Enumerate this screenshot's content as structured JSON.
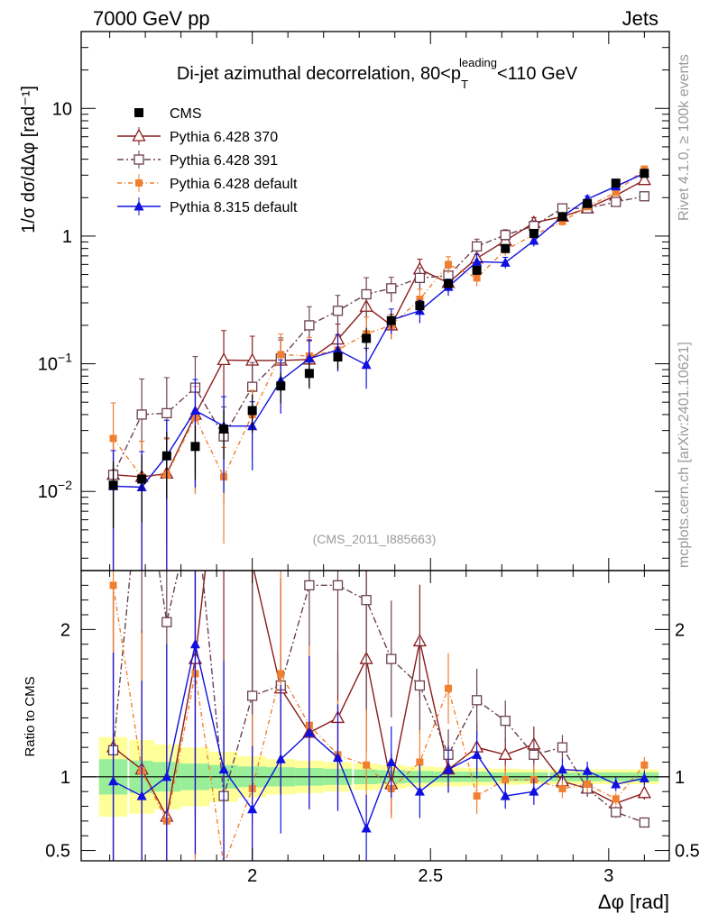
{
  "header": {
    "left": "7000 GeV pp",
    "right": "Jets"
  },
  "side_labels": {
    "rivet": "Rivet 4.1.0, ≥ 100k events",
    "mcplots": "mcplots.cern.ch [arXiv:2401.10621]"
  },
  "chart_data": {
    "type": "scatter",
    "title": "Di-jet azimuthal decorrelation, 80<p_T^leading<110 GeV",
    "title_main": "Di-jet azimuthal decorrelation, 80<p",
    "title_sup": "leading",
    "title_sub": "T",
    "title_end": "<110 GeV",
    "ylabel": "1/σ dσ/dΔφ [rad⁻¹]",
    "ratio_ylabel": "Ratio to CMS",
    "xlabel": "Δφ [rad]",
    "analysis_label": "(CMS_2011_I885663)",
    "xlim": [
      1.52,
      3.17
    ],
    "ylim": [
      0.0024,
      40
    ],
    "ratio_ylim": [
      0.43,
      2.4
    ],
    "yscale": "log",
    "x_ticks": [
      {
        "v": 2,
        "label": "2"
      },
      {
        "v": 2.5,
        "label": "2.5"
      },
      {
        "v": 3,
        "label": "3"
      }
    ],
    "y_ticks": [
      {
        "v": 0.01,
        "base": "10",
        "exp": "−2"
      },
      {
        "v": 0.1,
        "base": "10",
        "exp": "−1"
      },
      {
        "v": 1,
        "base": "1",
        "exp": ""
      },
      {
        "v": 10,
        "base": "10",
        "exp": ""
      }
    ],
    "ratio_ticks": [
      {
        "v": 0.5,
        "label": "0.5"
      },
      {
        "v": 1,
        "label": "1"
      },
      {
        "v": 2,
        "label": "2"
      }
    ],
    "x": [
      1.61,
      1.69,
      1.76,
      1.84,
      1.92,
      2.0,
      2.08,
      2.16,
      2.24,
      2.32,
      2.39,
      2.47,
      2.55,
      2.63,
      2.71,
      2.79,
      2.87,
      2.94,
      3.02,
      3.1
    ],
    "cms_values": [
      0.0112,
      0.0125,
      0.019,
      0.0225,
      0.0308,
      0.043,
      0.067,
      0.084,
      0.113,
      0.158,
      0.218,
      0.285,
      0.425,
      0.54,
      0.8,
      1.05,
      1.42,
      1.8,
      2.6,
      3.1
    ],
    "band_inner": [
      0.12,
      0.11,
      0.1,
      0.09,
      0.08,
      0.07,
      0.065,
      0.06,
      0.055,
      0.05,
      0.045,
      0.04,
      0.035,
      0.035,
      0.03,
      0.03,
      0.03,
      0.03,
      0.03,
      0.03
    ],
    "band_outer": [
      0.27,
      0.25,
      0.22,
      0.2,
      0.17,
      0.14,
      0.12,
      0.11,
      0.1,
      0.09,
      0.08,
      0.07,
      0.065,
      0.06,
      0.055,
      0.05,
      0.05,
      0.05,
      0.05,
      0.05
    ],
    "series": [
      {
        "name": "CMS",
        "color": "#000000",
        "marker": "square-filled",
        "dash": "",
        "values": [
          0.0112,
          0.0125,
          0.019,
          0.0225,
          0.0308,
          0.043,
          0.067,
          0.084,
          0.113,
          0.158,
          0.218,
          0.285,
          0.425,
          0.54,
          0.8,
          1.05,
          1.42,
          1.8,
          2.6,
          3.1
        ],
        "ratio": [
          1,
          1,
          1,
          1,
          1,
          1,
          1,
          1,
          1,
          1,
          1,
          1,
          1,
          1,
          1,
          1,
          1,
          1,
          1,
          1
        ]
      },
      {
        "name": "Pythia 6.428 370",
        "color": "#8b1a1a",
        "marker": "triangle-open",
        "dash": "",
        "values": [
          0.0135,
          0.013,
          0.0138,
          0.04,
          0.107,
          0.106,
          0.106,
          0.108,
          0.155,
          0.28,
          0.2,
          0.55,
          0.43,
          0.67,
          0.92,
          1.27,
          1.42,
          1.65,
          2.08,
          2.75
        ],
        "ratio": [
          1.2,
          1.05,
          0.73,
          1.8,
          3.5,
          2.45,
          1.6,
          1.3,
          1.4,
          1.8,
          0.95,
          1.92,
          1.05,
          1.2,
          1.15,
          1.22,
          0.97,
          0.92,
          0.82,
          0.89
        ]
      },
      {
        "name": "Pythia 6.428 391",
        "color": "#6b4050",
        "marker": "square-open",
        "dash": "7,3,2,3",
        "values": [
          0.0135,
          0.04,
          0.041,
          0.065,
          0.027,
          0.066,
          0.11,
          0.2,
          0.26,
          0.35,
          0.39,
          0.47,
          0.49,
          0.83,
          1.02,
          1.2,
          1.65,
          1.65,
          1.85,
          2.05
        ],
        "ratio": [
          1.18,
          3.2,
          2.05,
          2.9,
          0.87,
          1.55,
          1.62,
          2.3,
          2.3,
          2.2,
          1.8,
          1.62,
          1.15,
          1.52,
          1.38,
          1.15,
          1.2,
          0.92,
          0.76,
          0.69
        ]
      },
      {
        "name": "Pythia 6.428 default",
        "color": "#f08030",
        "marker": "square-filled-small",
        "dash": "5,3,1,3",
        "values": [
          0.026,
          0.013,
          0.0135,
          0.038,
          0.013,
          0.04,
          0.118,
          0.115,
          0.128,
          0.172,
          0.2,
          0.32,
          0.6,
          0.47,
          0.78,
          1.02,
          1.3,
          1.7,
          2.2,
          3.35
        ],
        "ratio": [
          2.3,
          1.04,
          0.7,
          1.7,
          0.4,
          0.92,
          1.7,
          1.35,
          1.15,
          1.08,
          0.92,
          1.1,
          1.6,
          0.87,
          0.98,
          0.98,
          0.92,
          0.95,
          0.85,
          1.08
        ]
      },
      {
        "name": "Pythia 8.315 default",
        "color": "#1010e0",
        "marker": "triangle-filled",
        "dash": "",
        "values": [
          0.011,
          0.0108,
          0.019,
          0.043,
          0.0325,
          0.0325,
          0.074,
          0.11,
          0.128,
          0.098,
          0.22,
          0.26,
          0.4,
          0.63,
          0.62,
          0.92,
          1.42,
          1.95,
          2.45,
          3.1
        ],
        "ratio": [
          0.97,
          0.87,
          1.0,
          1.9,
          1.05,
          0.78,
          1.12,
          1.3,
          1.13,
          0.65,
          1.1,
          0.9,
          1.05,
          1.15,
          0.87,
          0.9,
          1.05,
          1.04,
          0.95,
          0.99
        ]
      }
    ],
    "err_frac": [
      0.9,
      0.9,
      0.9,
      0.75,
      0.7,
      0.55,
      0.45,
      0.4,
      0.32,
      0.35,
      0.22,
      0.2,
      0.15,
      0.14,
      0.1,
      0.1,
      0.07,
      0.06,
      0.05,
      0.05
    ]
  }
}
